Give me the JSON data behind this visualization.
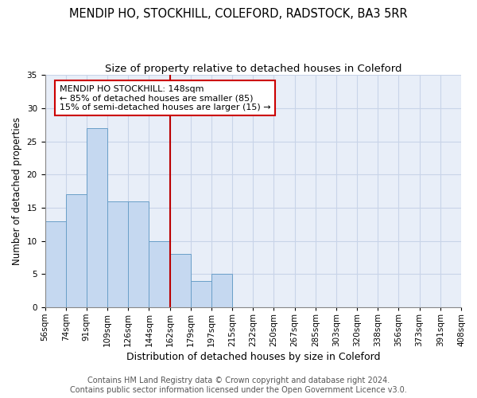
{
  "title": "MENDIP HO, STOCKHILL, COLEFORD, RADSTOCK, BA3 5RR",
  "subtitle": "Size of property relative to detached houses in Coleford",
  "xlabel": "Distribution of detached houses by size in Coleford",
  "ylabel": "Number of detached properties",
  "bin_labels": [
    "56sqm",
    "74sqm",
    "91sqm",
    "109sqm",
    "126sqm",
    "144sqm",
    "162sqm",
    "179sqm",
    "197sqm",
    "215sqm",
    "232sqm",
    "250sqm",
    "267sqm",
    "285sqm",
    "303sqm",
    "320sqm",
    "338sqm",
    "356sqm",
    "373sqm",
    "391sqm",
    "408sqm"
  ],
  "bar_values": [
    13,
    17,
    27,
    16,
    16,
    10,
    8,
    4,
    5,
    0,
    0,
    0,
    0,
    0,
    0,
    0,
    0,
    0,
    0,
    0
  ],
  "bar_color": "#c5d8f0",
  "bar_edge_color": "#6a9fc8",
  "vline_position": 6,
  "annotation_text": "MENDIP HO STOCKHILL: 148sqm\n← 85% of detached houses are smaller (85)\n15% of semi-detached houses are larger (15) →",
  "annotation_box_color": "#ffffff",
  "annotation_box_edge": "#cc0000",
  "vline_color": "#bb0000",
  "grid_color": "#c8d4e8",
  "background_color": "#e8eef8",
  "ylim": [
    0,
    35
  ],
  "yticks": [
    0,
    5,
    10,
    15,
    20,
    25,
    30,
    35
  ],
  "footer": "Contains HM Land Registry data © Crown copyright and database right 2024.\nContains public sector information licensed under the Open Government Licence v3.0.",
  "title_fontsize": 10.5,
  "subtitle_fontsize": 9.5,
  "xlabel_fontsize": 9,
  "ylabel_fontsize": 8.5,
  "tick_fontsize": 7.5,
  "annotation_fontsize": 8,
  "footer_fontsize": 7
}
